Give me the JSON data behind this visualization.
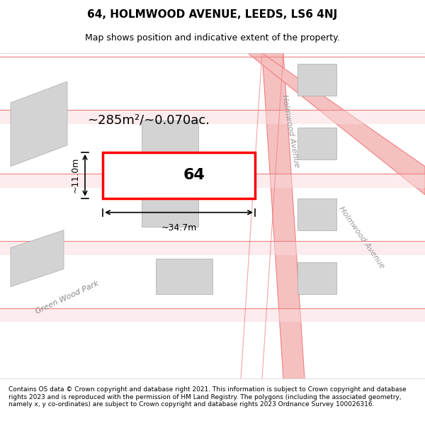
{
  "title_line1": "64, HOLMWOOD AVENUE, LEEDS, LS6 4NJ",
  "title_line2": "Map shows position and indicative extent of the property.",
  "footer_text": "Contains OS data © Crown copyright and database right 2021. This information is subject to Crown copyright and database rights 2023 and is reproduced with the permission of HM Land Registry. The polygons (including the associated geometry, namely x, y co-ordinates) are subject to Crown copyright and database rights 2023 Ordnance Survey 100026316.",
  "property_label": "64",
  "area_label": "~285m²/~0.070ac.",
  "width_label": "~34.7m",
  "height_label": "~11.0m",
  "property_color": "#ff0000",
  "road_color": "#f5a0a0",
  "building_color": "#d3d3d3",
  "road_line_color": "#f08080",
  "background_color": "#ffffff",
  "map_bg_color": "#f9f9f9"
}
